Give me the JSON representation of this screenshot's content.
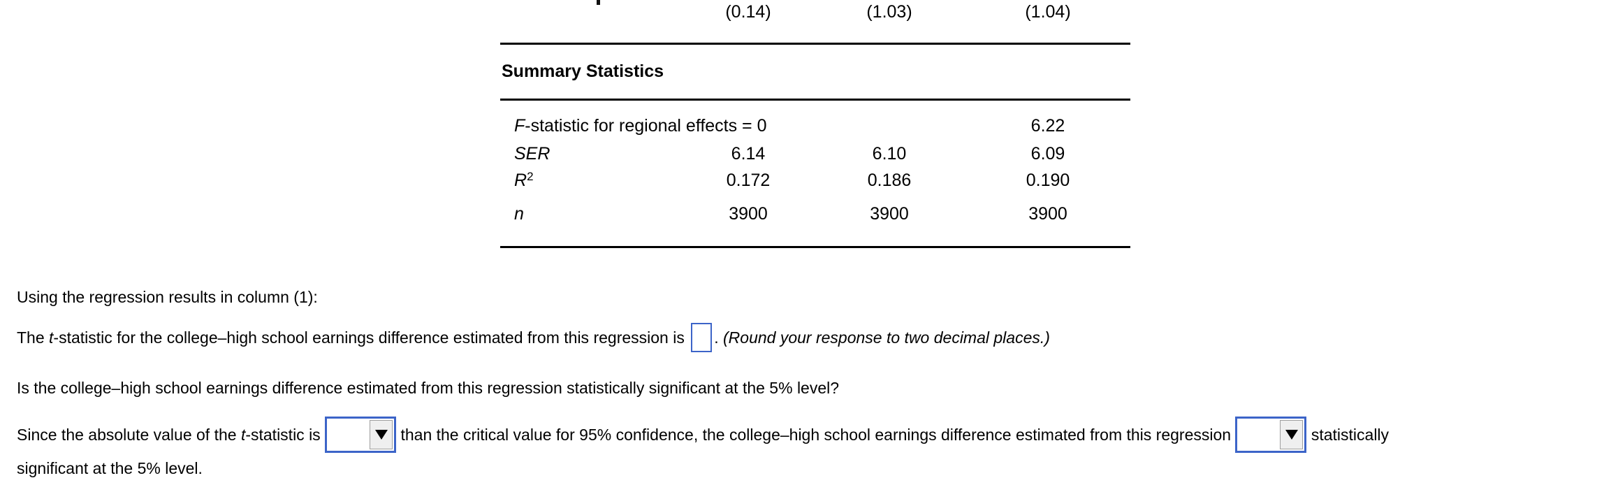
{
  "colors": {
    "accent_blue": "#3c64c8",
    "text": "#000000",
    "dropdown_button_bg": "#efefef"
  },
  "table": {
    "partial_row_values": [
      "(0.14)",
      "(1.03)",
      "(1.04)"
    ],
    "section_header": "Summary Statistics",
    "rows": [
      {
        "label_italic": "F",
        "label_rest": "-statistic for regional effects = 0",
        "sup": "",
        "values": [
          "",
          "",
          "6.22"
        ]
      },
      {
        "label_italic": "SER",
        "label_rest": "",
        "sup": "",
        "values": [
          "6.14",
          "6.10",
          "6.09"
        ]
      },
      {
        "label_italic": "R",
        "label_rest": "",
        "sup": "2",
        "values": [
          "0.172",
          "0.186",
          "0.190"
        ]
      },
      {
        "label_italic": "n",
        "label_rest": "",
        "sup": "",
        "values": [
          "3900",
          "3900",
          "3900"
        ]
      }
    ]
  },
  "questions": {
    "intro": "Using the regression results in column (1):",
    "q1": {
      "part1": "The ",
      "italic1": "t",
      "part2": "-statistic for the college–high school earnings difference estimated from this regression is ",
      "input_value": "",
      "part3": ". ",
      "note": "(Round your response to two decimal places.)"
    },
    "q2": "Is the college–high school earnings difference estimated from this regression statistically significant at the 5% level?",
    "q3": {
      "part1": "Since the absolute value of the ",
      "italic1": "t",
      "part2": "-statistic is ",
      "dropdown1_value": "",
      "part3": " than the critical value for 95% confidence, the college–high school earnings difference estimated from this regression ",
      "dropdown2_value": "",
      "part4": " statistically",
      "line2": "significant at the 5% level."
    }
  }
}
